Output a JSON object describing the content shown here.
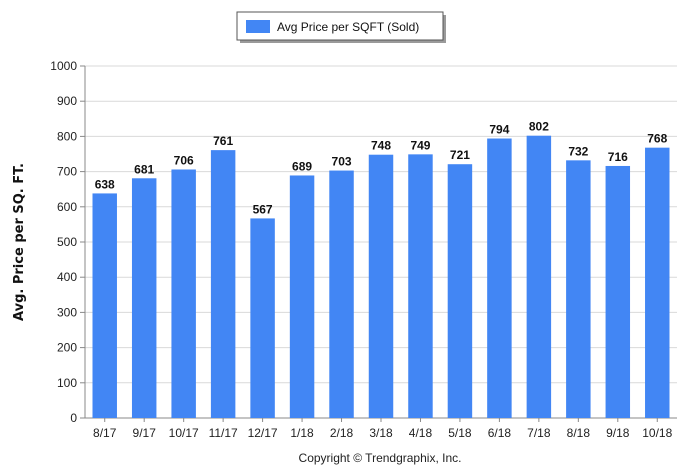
{
  "chart_data": {
    "type": "bar",
    "categories": [
      "8/17",
      "9/17",
      "10/17",
      "11/17",
      "12/17",
      "1/18",
      "2/18",
      "3/18",
      "4/18",
      "5/18",
      "6/18",
      "7/18",
      "8/18",
      "9/18",
      "10/18"
    ],
    "series": [
      {
        "name": "Avg Price per SQFT (Sold)",
        "values": [
          638,
          681,
          706,
          761,
          567,
          689,
          703,
          748,
          749,
          721,
          794,
          802,
          732,
          716,
          768
        ],
        "color": "#4286f4"
      }
    ],
    "ylabel": "Avg. Price per SQ. FT.",
    "xlabel": "",
    "ylim": [
      0,
      1000
    ],
    "yticks": [
      0,
      100,
      200,
      300,
      400,
      500,
      600,
      700,
      800,
      900,
      1000
    ],
    "grid": true,
    "legend_position": "top-center",
    "data_labels": true
  },
  "footer": {
    "copyright": "Copyright © Trendgraphix, Inc."
  },
  "colors": {
    "bar": "#4286f4",
    "grid": "#d9d9d9",
    "axis": "#888888"
  }
}
